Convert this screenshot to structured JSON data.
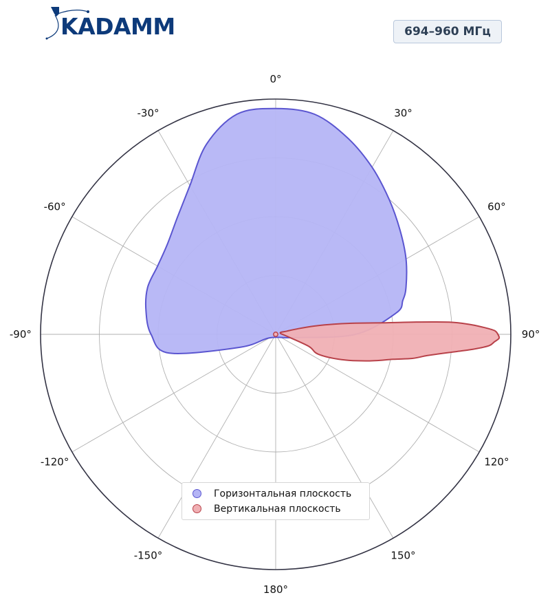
{
  "logo": {
    "text": "KADAMM",
    "icon": "kadamm-logo-icon"
  },
  "badge": {
    "text": "694–960 МГц"
  },
  "chart_data": {
    "type": "polar",
    "title": "",
    "angle_labels": [
      "0°",
      "30°",
      "60°",
      "90°",
      "120°",
      "150°",
      "180°",
      "-150°",
      "-120°",
      "-90°",
      "-60°",
      "-30°"
    ],
    "angle_ticks_deg": [
      0,
      30,
      60,
      90,
      120,
      150,
      180,
      -150,
      -120,
      -90,
      -60,
      -30
    ],
    "radial_range": [
      0,
      1
    ],
    "radial_gridlines": [
      0.25,
      0.5,
      0.75
    ],
    "grid": true,
    "legend_placement": "bottom-center",
    "series": [
      {
        "name": "Горизонтальная плоскость",
        "color": "#5a55d0",
        "fill": "#b5b5f5",
        "angles_deg": [
          -120,
          -110,
          -100,
          -90,
          -80,
          -70,
          -60,
          -50,
          -40,
          -30,
          -20,
          -10,
          0,
          10,
          20,
          30,
          40,
          50,
          60,
          70,
          75,
          80,
          90,
          100
        ],
        "values": [
          0.03,
          0.16,
          0.46,
          0.53,
          0.56,
          0.58,
          0.58,
          0.6,
          0.65,
          0.73,
          0.86,
          0.95,
          0.96,
          0.95,
          0.89,
          0.82,
          0.75,
          0.69,
          0.64,
          0.59,
          0.56,
          0.52,
          0.34,
          0.08
        ]
      },
      {
        "name": "Вертикальная плоскость",
        "color": "#b84149",
        "fill": "#f0b0b4",
        "angles_deg": [
          100,
          110,
          115,
          111,
          106,
          102,
          100,
          98,
          96,
          95,
          94,
          93,
          92,
          91,
          90,
          89,
          88,
          87,
          86,
          85,
          84,
          82,
          80,
          78,
          76,
          74,
          72
        ],
        "values": [
          0.05,
          0.15,
          0.2,
          0.3,
          0.41,
          0.51,
          0.59,
          0.65,
          0.74,
          0.8,
          0.86,
          0.91,
          0.93,
          0.95,
          0.945,
          0.93,
          0.88,
          0.82,
          0.74,
          0.6,
          0.47,
          0.34,
          0.25,
          0.17,
          0.1,
          0.05,
          0.02
        ]
      }
    ]
  }
}
